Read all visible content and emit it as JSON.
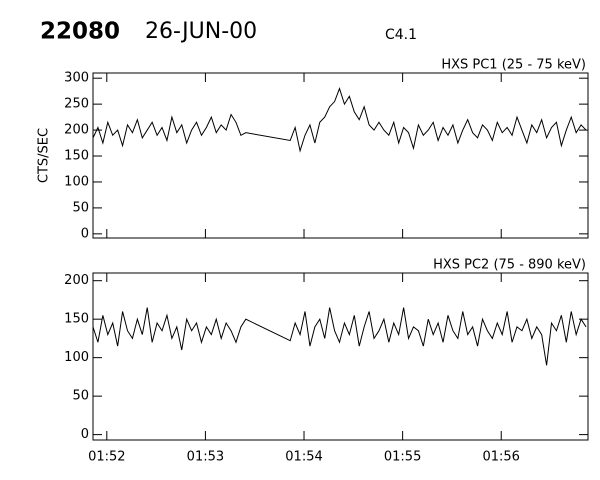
{
  "header": {
    "id": "22080",
    "date": "26-JUN-00",
    "class": "C4.1"
  },
  "chart_data": [
    {
      "type": "line",
      "title": "HXS PC1 (25 - 75 keV)",
      "ylabel": "CTS/SEC",
      "x": [
        51.86,
        51.91,
        51.96,
        52.01,
        52.06,
        52.11,
        52.16,
        52.21,
        52.26,
        52.31,
        52.36,
        52.41,
        52.46,
        52.51,
        52.56,
        52.61,
        52.66,
        52.71,
        52.76,
        52.81,
        52.86,
        52.91,
        52.96,
        53.01,
        53.06,
        53.11,
        53.16,
        53.21,
        53.26,
        53.31,
        53.36,
        53.41,
        53.86,
        53.91,
        53.96,
        54.01,
        54.06,
        54.11,
        54.16,
        54.21,
        54.26,
        54.31,
        54.36,
        54.41,
        54.46,
        54.51,
        54.56,
        54.61,
        54.66,
        54.71,
        54.76,
        54.81,
        54.86,
        54.91,
        54.96,
        55.01,
        55.06,
        55.11,
        55.16,
        55.21,
        55.26,
        55.31,
        55.36,
        55.41,
        55.46,
        55.51,
        55.56,
        55.61,
        55.66,
        55.71,
        55.76,
        55.81,
        55.86,
        55.91,
        55.96,
        56.01,
        56.06,
        56.11,
        56.16,
        56.21,
        56.26,
        56.31,
        56.36,
        56.41,
        56.46,
        56.51,
        56.56,
        56.61,
        56.66,
        56.71,
        56.76,
        56.81,
        56.86
      ],
      "series": [
        {
          "color": "#000000",
          "values": [
            185,
            205,
            175,
            215,
            190,
            200,
            170,
            210,
            195,
            220,
            185,
            200,
            215,
            190,
            205,
            180,
            225,
            195,
            210,
            175,
            200,
            215,
            190,
            205,
            225,
            195,
            210,
            200,
            230,
            215,
            190,
            195,
            180,
            205,
            160,
            190,
            210,
            175,
            215,
            225,
            245,
            255,
            280,
            250,
            265,
            235,
            220,
            245,
            210,
            200,
            215,
            200,
            190,
            215,
            175,
            205,
            195,
            165,
            210,
            190,
            200,
            215,
            180,
            205,
            190,
            210,
            175,
            200,
            220,
            195,
            185,
            210,
            200,
            180,
            215,
            195,
            205,
            190,
            225,
            200,
            175,
            210,
            195,
            220,
            185,
            205,
            215,
            170,
            200,
            225,
            195,
            210,
            200
          ]
        }
      ],
      "xlim": [
        51.86,
        56.88
      ],
      "ylim": [
        -8,
        310
      ],
      "yticks": [
        0,
        50,
        100,
        150,
        200,
        250,
        300
      ]
    },
    {
      "type": "line",
      "title": "HXS PC2 (75 - 890 keV)",
      "x": [
        51.86,
        51.91,
        51.96,
        52.01,
        52.06,
        52.11,
        52.16,
        52.21,
        52.26,
        52.31,
        52.36,
        52.41,
        52.46,
        52.51,
        52.56,
        52.61,
        52.66,
        52.71,
        52.76,
        52.81,
        52.86,
        52.91,
        52.96,
        53.01,
        53.06,
        53.11,
        53.16,
        53.21,
        53.26,
        53.31,
        53.36,
        53.41,
        53.86,
        53.91,
        53.96,
        54.01,
        54.06,
        54.11,
        54.16,
        54.21,
        54.26,
        54.31,
        54.36,
        54.41,
        54.46,
        54.51,
        54.56,
        54.61,
        54.66,
        54.71,
        54.76,
        54.81,
        54.86,
        54.91,
        54.96,
        55.01,
        55.06,
        55.11,
        55.16,
        55.21,
        55.26,
        55.31,
        55.36,
        55.41,
        55.46,
        55.51,
        55.56,
        55.61,
        55.66,
        55.71,
        55.76,
        55.81,
        55.86,
        55.91,
        55.96,
        56.01,
        56.06,
        56.11,
        56.16,
        56.21,
        56.26,
        56.31,
        56.36,
        56.41,
        56.46,
        56.51,
        56.56,
        56.61,
        56.66,
        56.71,
        56.76,
        56.81,
        56.86
      ],
      "series": [
        {
          "color": "#000000",
          "values": [
            140,
            120,
            155,
            130,
            145,
            115,
            160,
            135,
            125,
            150,
            130,
            165,
            120,
            145,
            135,
            155,
            125,
            140,
            110,
            150,
            135,
            145,
            120,
            140,
            130,
            150,
            125,
            145,
            135,
            120,
            140,
            150,
            122,
            145,
            130,
            160,
            115,
            140,
            150,
            125,
            165,
            135,
            120,
            145,
            130,
            155,
            115,
            140,
            160,
            125,
            135,
            150,
            120,
            145,
            130,
            165,
            125,
            140,
            135,
            115,
            150,
            130,
            145,
            120,
            155,
            135,
            125,
            160,
            130,
            140,
            115,
            150,
            135,
            125,
            145,
            130,
            160,
            120,
            140,
            135,
            150,
            125,
            140,
            130,
            90,
            145,
            135,
            155,
            120,
            160,
            130,
            150,
            140
          ]
        }
      ],
      "xlim": [
        51.86,
        56.88
      ],
      "ylim": [
        -7,
        210
      ],
      "yticks": [
        0,
        50,
        100,
        150,
        200
      ],
      "xticks": [
        {
          "value": 52,
          "label": "01:52"
        },
        {
          "value": 53,
          "label": "01:53"
        },
        {
          "value": 54,
          "label": "01:54"
        },
        {
          "value": 55,
          "label": "01:55"
        },
        {
          "value": 56,
          "label": "01:56"
        }
      ]
    }
  ]
}
